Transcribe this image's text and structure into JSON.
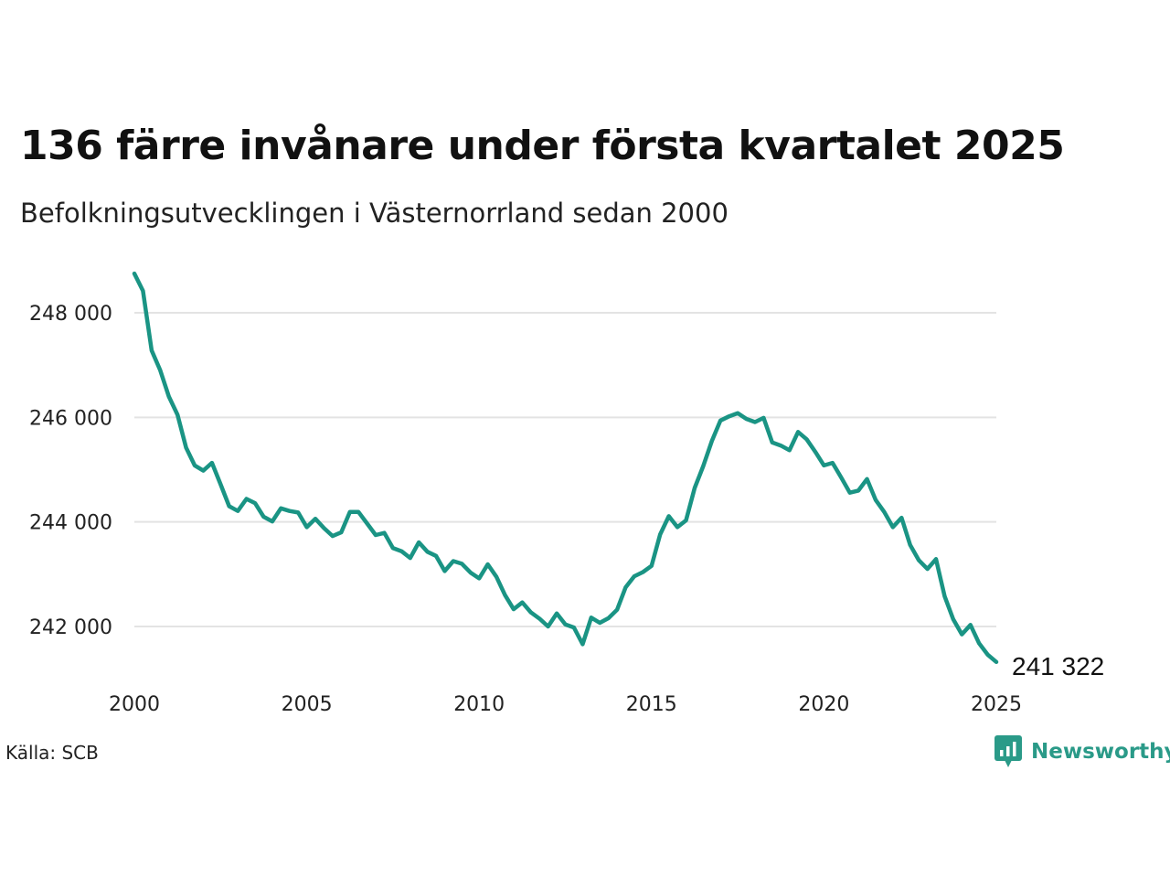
{
  "header": {
    "title": "136 färre invånare under första kvartalet 2025",
    "subtitle": "Befolkningsutvecklingen i Västernorrland sedan 2000"
  },
  "footer": {
    "source": "Källa: SCB",
    "brand": "Newsworthy"
  },
  "colors": {
    "line": "#1a9484",
    "grid": "#e3e3e3",
    "brand": "#2a9a88"
  },
  "icons": {
    "brand_logo": "newsworthy-logo-icon"
  },
  "chart_data": {
    "type": "line",
    "title": "136 färre invånare under första kvartalet 2025",
    "subtitle": "Befolkningsutvecklingen i Västernorrland sedan 2000",
    "xlabel": "",
    "ylabel": "",
    "xlim": [
      2000,
      2025
    ],
    "ylim": [
      241000,
      248800
    ],
    "grid": true,
    "x_ticks": [
      2000,
      2005,
      2010,
      2015,
      2020,
      2025
    ],
    "x_tick_labels": [
      "2000",
      "2005",
      "2010",
      "2015",
      "2020",
      "2025"
    ],
    "y_ticks": [
      242000,
      244000,
      246000,
      248000
    ],
    "y_tick_labels": [
      "242 000",
      "244 000",
      "246 000",
      "248 000"
    ],
    "end_label": "241 322",
    "series": [
      {
        "points": [
          [
            2000.0,
            248750
          ],
          [
            2000.25,
            248420
          ],
          [
            2000.5,
            247280
          ],
          [
            2000.75,
            246900
          ],
          [
            2001.0,
            246400
          ],
          [
            2001.25,
            246050
          ],
          [
            2001.5,
            245420
          ],
          [
            2001.75,
            245080
          ],
          [
            2002.0,
            244980
          ],
          [
            2002.25,
            245130
          ],
          [
            2002.5,
            244720
          ],
          [
            2002.75,
            244300
          ],
          [
            2003.0,
            244210
          ],
          [
            2003.25,
            244440
          ],
          [
            2003.5,
            244360
          ],
          [
            2003.75,
            244100
          ],
          [
            2004.0,
            244010
          ],
          [
            2004.25,
            244260
          ],
          [
            2004.5,
            244210
          ],
          [
            2004.75,
            244180
          ],
          [
            2005.0,
            243900
          ],
          [
            2005.25,
            244060
          ],
          [
            2005.5,
            243880
          ],
          [
            2005.75,
            243730
          ],
          [
            2006.0,
            243800
          ],
          [
            2006.25,
            244190
          ],
          [
            2006.5,
            244190
          ],
          [
            2006.75,
            243970
          ],
          [
            2007.0,
            243750
          ],
          [
            2007.25,
            243790
          ],
          [
            2007.5,
            243500
          ],
          [
            2007.75,
            243440
          ],
          [
            2008.0,
            243310
          ],
          [
            2008.25,
            243610
          ],
          [
            2008.5,
            243430
          ],
          [
            2008.75,
            243350
          ],
          [
            2009.0,
            243060
          ],
          [
            2009.25,
            243250
          ],
          [
            2009.5,
            243200
          ],
          [
            2009.75,
            243030
          ],
          [
            2010.0,
            242920
          ],
          [
            2010.25,
            243190
          ],
          [
            2010.5,
            242950
          ],
          [
            2010.75,
            242600
          ],
          [
            2011.0,
            242330
          ],
          [
            2011.25,
            242460
          ],
          [
            2011.5,
            242270
          ],
          [
            2011.75,
            242150
          ],
          [
            2012.0,
            242000
          ],
          [
            2012.25,
            242250
          ],
          [
            2012.5,
            242040
          ],
          [
            2012.75,
            241980
          ],
          [
            2013.0,
            241660
          ],
          [
            2013.25,
            242170
          ],
          [
            2013.5,
            242070
          ],
          [
            2013.75,
            242160
          ],
          [
            2014.0,
            242320
          ],
          [
            2014.25,
            242750
          ],
          [
            2014.5,
            242960
          ],
          [
            2014.75,
            243040
          ],
          [
            2015.0,
            243160
          ],
          [
            2015.25,
            243760
          ],
          [
            2015.5,
            244110
          ],
          [
            2015.75,
            243900
          ],
          [
            2016.0,
            244030
          ],
          [
            2016.25,
            244650
          ],
          [
            2016.5,
            245070
          ],
          [
            2016.75,
            245550
          ],
          [
            2017.0,
            245940
          ],
          [
            2017.25,
            246020
          ],
          [
            2017.5,
            246080
          ],
          [
            2017.75,
            245970
          ],
          [
            2018.0,
            245910
          ],
          [
            2018.25,
            245990
          ],
          [
            2018.5,
            245520
          ],
          [
            2018.75,
            245460
          ],
          [
            2019.0,
            245370
          ],
          [
            2019.25,
            245720
          ],
          [
            2019.5,
            245580
          ],
          [
            2019.75,
            245340
          ],
          [
            2020.0,
            245080
          ],
          [
            2020.25,
            245130
          ],
          [
            2020.5,
            244850
          ],
          [
            2020.75,
            244560
          ],
          [
            2021.0,
            244600
          ],
          [
            2021.25,
            244820
          ],
          [
            2021.5,
            244420
          ],
          [
            2021.75,
            244190
          ],
          [
            2022.0,
            243900
          ],
          [
            2022.25,
            244080
          ],
          [
            2022.5,
            243560
          ],
          [
            2022.75,
            243270
          ],
          [
            2023.0,
            243100
          ],
          [
            2023.25,
            243290
          ],
          [
            2023.5,
            242580
          ],
          [
            2023.75,
            242140
          ],
          [
            2024.0,
            241850
          ],
          [
            2024.25,
            242030
          ],
          [
            2024.5,
            241680
          ],
          [
            2024.75,
            241460
          ],
          [
            2025.0,
            241322
          ]
        ]
      }
    ]
  }
}
